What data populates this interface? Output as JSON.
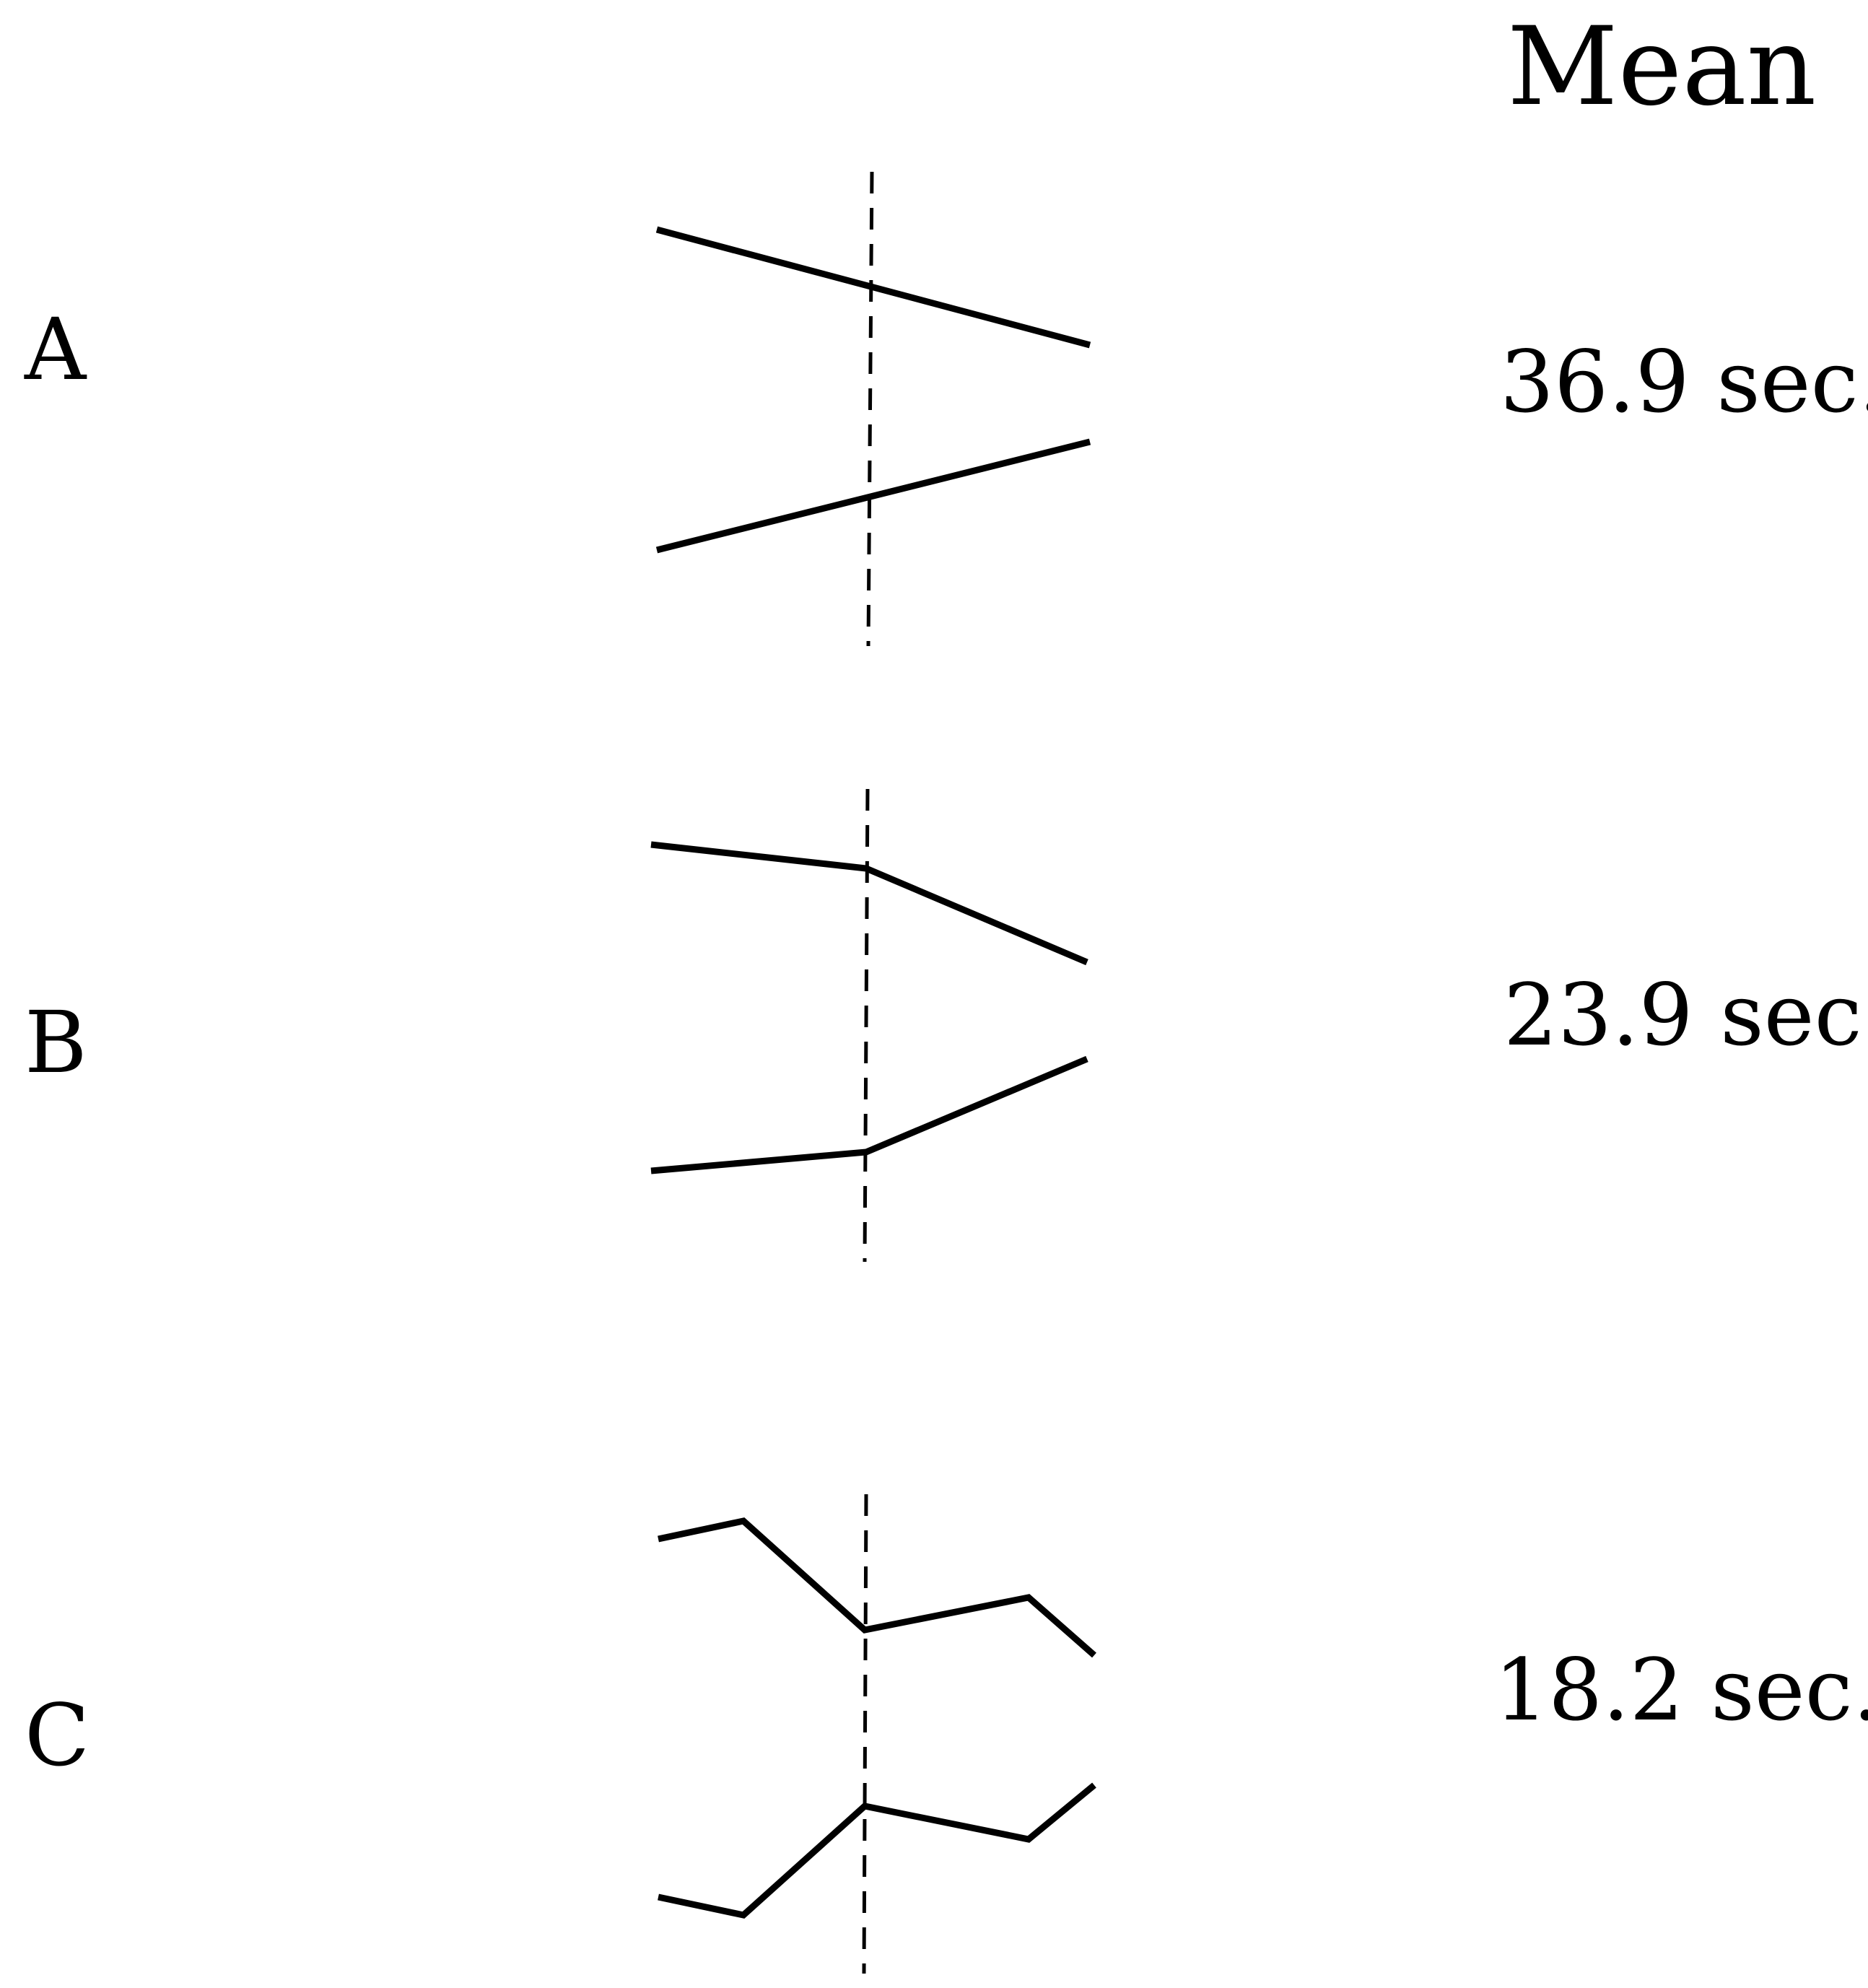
{
  "header": "Mean",
  "rows": [
    {
      "label": "A",
      "mean": "36.9 sec."
    },
    {
      "label": "B",
      "mean": "23.9 sec."
    },
    {
      "label": "C",
      "mean": "18.2 sec."
    }
  ],
  "colors": {
    "line": "#000000",
    "background": "#ffffff"
  }
}
